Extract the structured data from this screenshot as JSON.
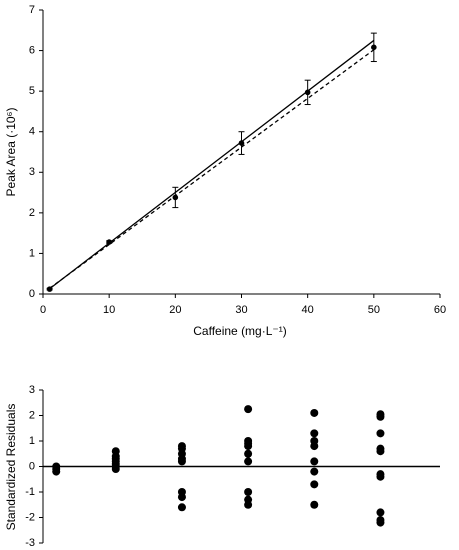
{
  "chart_data": [
    {
      "type": "scatter",
      "x_label": "Caffeine (mg·L⁻¹)",
      "y_label": "Peak Area (·10⁶)",
      "x": [
        1,
        10,
        20,
        30,
        40,
        50
      ],
      "values": [
        0.12,
        1.28,
        2.38,
        3.72,
        4.97,
        6.08
      ],
      "errors": [
        0.02,
        0.03,
        0.25,
        0.28,
        0.3,
        0.35
      ],
      "color": "#000000",
      "lines": [
        {
          "x": [
            1,
            50
          ],
          "values": [
            0.13,
            6.25
          ],
          "style": "solid"
        },
        {
          "x": [
            1,
            50
          ],
          "values": [
            0.14,
            6.02
          ],
          "style": "dashed"
        }
      ],
      "xlim": [
        0,
        60
      ],
      "xticks": [
        0,
        10,
        20,
        30,
        40,
        50,
        60
      ],
      "ylim": [
        0,
        7
      ],
      "yticks": [
        0,
        1,
        2,
        3,
        4,
        5,
        6,
        7
      ]
    },
    {
      "type": "scatter",
      "y_label": "Standardized Residuals",
      "x": [
        2,
        2,
        2,
        11,
        11,
        11,
        11,
        11,
        11,
        11,
        21,
        21,
        21,
        21,
        21,
        21,
        21,
        21,
        31,
        31,
        31,
        31,
        31,
        31,
        31,
        31,
        31,
        41,
        41,
        41,
        41,
        41,
        41,
        41,
        41,
        51,
        51,
        51,
        51,
        51,
        51,
        51,
        51,
        51,
        51
      ],
      "values": [
        0,
        -0.1,
        -0.2,
        0.6,
        0.4,
        0.3,
        0.2,
        0.1,
        0,
        -0.1,
        0.8,
        0.7,
        0.5,
        0.3,
        0.2,
        -1.0,
        -1.2,
        -1.6,
        2.25,
        1.0,
        0.9,
        0.8,
        0.5,
        0.2,
        -1.0,
        -1.3,
        -1.5,
        2.1,
        1.3,
        1.0,
        0.8,
        0.2,
        -0.2,
        -0.7,
        -1.5,
        2.05,
        1.95,
        1.3,
        0.7,
        0.6,
        -0.3,
        -0.4,
        -1.8,
        -2.1,
        -2.2
      ],
      "color": "#000000",
      "reference_line": 0,
      "xlim": [
        0,
        60
      ],
      "ylim": [
        -3,
        3
      ],
      "yticks": [
        -3,
        -2,
        -1,
        0,
        1,
        2,
        3
      ]
    }
  ]
}
